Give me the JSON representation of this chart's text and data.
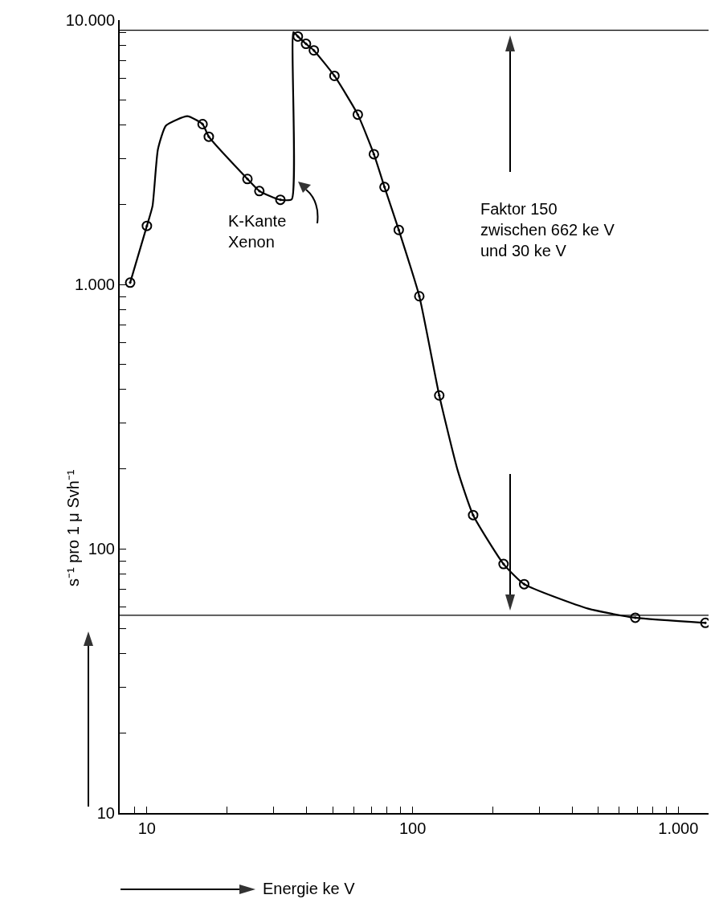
{
  "chart_data": {
    "type": "line",
    "xlabel": "Energie ke V",
    "ylabel": "s⁻¹ pro 1 μ Svh⁻¹",
    "log": "xy",
    "grid": false,
    "xlim": [
      7.9,
      1300
    ],
    "ylim": [
      10,
      10000
    ],
    "xticks": [
      {
        "value": 9,
        "label": null
      },
      10,
      {
        "value": 20,
        "label": null
      },
      {
        "value": 30,
        "label": null
      },
      {
        "value": 40,
        "label": null
      },
      {
        "value": 50,
        "label": null
      },
      {
        "value": 60,
        "label": null
      },
      {
        "value": 70,
        "label": null
      },
      {
        "value": 80,
        "label": null
      },
      {
        "value": 90,
        "label": null
      },
      100,
      {
        "value": 200,
        "label": null
      },
      {
        "value": 300,
        "label": null
      },
      {
        "value": 400,
        "label": null
      },
      {
        "value": 500,
        "label": null
      },
      {
        "value": 600,
        "label": null
      },
      {
        "value": 700,
        "label": null
      },
      {
        "value": 800,
        "label": null
      },
      {
        "value": 900,
        "label": null
      },
      {
        "value": 1000,
        "label": "1.000"
      }
    ],
    "yticks": [
      10,
      {
        "value": 20,
        "label": null
      },
      {
        "value": 30,
        "label": null
      },
      {
        "value": 40,
        "label": null
      },
      {
        "value": 50,
        "label": null
      },
      {
        "value": 60,
        "label": null
      },
      {
        "value": 70,
        "label": null
      },
      {
        "value": 80,
        "label": null
      },
      {
        "value": 90,
        "label": null
      },
      100,
      {
        "value": 200,
        "label": null
      },
      {
        "value": 300,
        "label": null
      },
      {
        "value": 400,
        "label": null
      },
      {
        "value": 500,
        "label": null
      },
      {
        "value": 600,
        "label": null
      },
      {
        "value": 700,
        "label": null
      },
      {
        "value": 800,
        "label": null
      },
      {
        "value": 900,
        "label": null
      },
      {
        "value": 1000,
        "label": "1.000"
      },
      {
        "value": 2000,
        "label": null
      },
      {
        "value": 3000,
        "label": null
      },
      {
        "value": 4000,
        "label": null
      },
      {
        "value": 5000,
        "label": null
      },
      {
        "value": 6000,
        "label": null
      },
      {
        "value": 7000,
        "label": null
      },
      {
        "value": 8000,
        "label": null
      },
      {
        "value": 9000,
        "label": null
      },
      {
        "value": 10000,
        "label": "10.000"
      }
    ],
    "series": [
      {
        "marker": "none",
        "color": "#000000",
        "x": [
          8.65,
          10,
          10.5,
          11,
          11.8,
          14.2,
          16.2,
          17.1,
          23.9,
          26.5,
          31.8,
          35.1,
          35.6,
          37,
          39.7,
          42.5,
          50.8,
          62.2,
          71.5,
          78.4,
          88.7,
          106,
          126,
          148,
          169,
          220,
          263,
          458,
          689,
          1265
        ],
        "values": [
          1015,
          1665,
          1980,
          3240,
          3990,
          4330,
          4040,
          3620,
          2505,
          2255,
          2090,
          2100,
          9000,
          8670,
          8130,
          7680,
          6150,
          4390,
          3110,
          2335,
          1607,
          902,
          380,
          197,
          134,
          87.5,
          73.4,
          59.3,
          54.8,
          52.4
        ]
      },
      {
        "type": "scatter",
        "marker": "circle",
        "color": "#000000",
        "x": [
          8.65,
          10,
          16.2,
          17.1,
          23.9,
          26.5,
          31.8,
          37,
          39.7,
          42.5,
          50.8,
          62.2,
          71.5,
          78.4,
          88.7,
          106,
          126,
          169,
          220,
          263,
          689,
          1265
        ],
        "values": [
          1015,
          1665,
          4040,
          3620,
          2505,
          2255,
          2090,
          8670,
          8130,
          7680,
          6150,
          4390,
          3110,
          2335,
          1607,
          902,
          380,
          134,
          87.5,
          73.4,
          54.8,
          52.4
        ]
      }
    ],
    "ref_lines": [
      {
        "axis": "y",
        "value": 9160,
        "label": null,
        "color": "#000000"
      },
      {
        "axis": "y",
        "value": 56,
        "label": null,
        "color": "#000000"
      }
    ],
    "annotations": [
      {
        "text": "K-Kante\nXenon",
        "x": 35.1,
        "y": 2100
      },
      "Faktor 150\nzwischen 662 ke V\nund 30 ke V"
    ]
  }
}
